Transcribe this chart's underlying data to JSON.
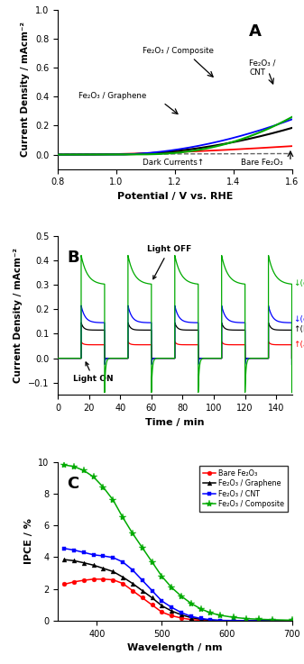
{
  "panel_A": {
    "label": "A",
    "xlabel": "Potential / V vs. RHE",
    "ylabel": "Current Density / mAcm⁻²",
    "xlim": [
      0.8,
      1.6
    ],
    "ylim": [
      -0.1,
      1.0
    ],
    "yticks": [
      0.0,
      0.2,
      0.4,
      0.6,
      0.8,
      1.0
    ],
    "xticks": [
      0.8,
      1.0,
      1.2,
      1.4,
      1.6
    ]
  },
  "panel_B": {
    "label": "B",
    "xlabel": "Time / min",
    "ylabel": "Current Density / mAcm⁻²",
    "xlim": [
      0,
      150
    ],
    "ylim": [
      -0.15,
      0.5
    ],
    "yticks": [
      -0.1,
      0.0,
      0.1,
      0.2,
      0.3,
      0.4,
      0.5
    ],
    "xticks": [
      0,
      20,
      40,
      60,
      80,
      100,
      120,
      140
    ]
  },
  "panel_C": {
    "label": "C",
    "xlabel": "Wavelength / nm",
    "ylabel": "IPCE / %",
    "xlim": [
      340,
      700
    ],
    "ylim": [
      0,
      10
    ],
    "yticks": [
      0,
      2,
      4,
      6,
      8,
      10
    ],
    "xticks": [
      400,
      500,
      600,
      700
    ],
    "wavelengths": [
      350,
      365,
      380,
      395,
      410,
      425,
      440,
      455,
      470,
      485,
      500,
      515,
      530,
      545,
      560,
      575,
      590,
      610,
      630,
      650,
      670,
      700
    ],
    "bare": [
      2.3,
      2.45,
      2.55,
      2.62,
      2.62,
      2.58,
      2.35,
      1.9,
      1.45,
      1.0,
      0.55,
      0.32,
      0.18,
      0.08,
      0.04,
      0.02,
      0.01,
      0.0,
      0.0,
      0.0,
      0.0,
      0.0
    ],
    "graphene": [
      3.85,
      3.78,
      3.65,
      3.5,
      3.3,
      3.1,
      2.75,
      2.35,
      1.9,
      1.45,
      0.95,
      0.62,
      0.38,
      0.2,
      0.1,
      0.05,
      0.02,
      0.01,
      0.0,
      0.0,
      0.0,
      0.0
    ],
    "cnt": [
      4.55,
      4.45,
      4.3,
      4.15,
      4.08,
      3.98,
      3.7,
      3.2,
      2.55,
      1.9,
      1.25,
      0.85,
      0.52,
      0.28,
      0.15,
      0.07,
      0.03,
      0.02,
      0.01,
      0.0,
      0.0,
      0.0
    ],
    "composite": [
      9.8,
      9.7,
      9.45,
      9.05,
      8.4,
      7.6,
      6.5,
      5.5,
      4.6,
      3.7,
      2.8,
      2.1,
      1.55,
      1.1,
      0.75,
      0.5,
      0.35,
      0.22,
      0.14,
      0.1,
      0.07,
      0.04
    ]
  },
  "colors": {
    "bare": "#ff0000",
    "graphene": "#000000",
    "cnt": "#0000ff",
    "composite": "#00aa00",
    "dark": "#666666"
  }
}
